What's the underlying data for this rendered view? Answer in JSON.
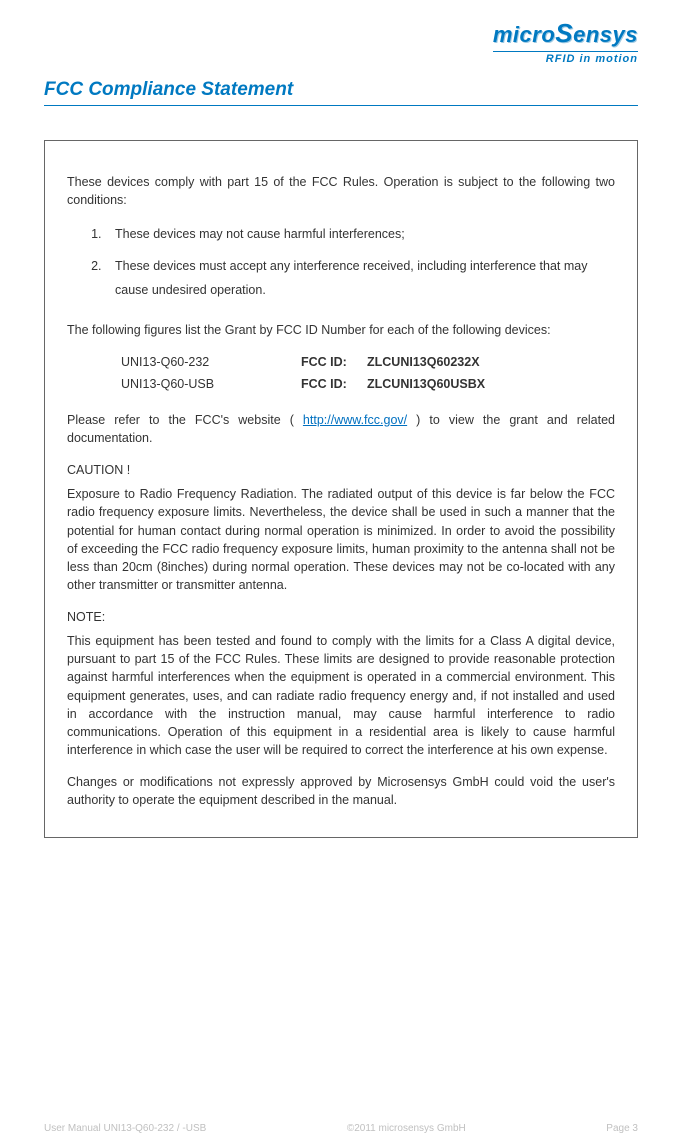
{
  "logo": {
    "main": "microSensys",
    "sub": "RFID in motion"
  },
  "section_title": "FCC Compliance Statement",
  "intro": "These devices comply with part 15 of the FCC Rules. Operation is subject to the following two conditions:",
  "conditions": [
    "These devices may not cause harmful interferences;",
    "These devices must accept any interference received, including interference that may cause undesired operation."
  ],
  "figures_intro": "The following figures list the Grant by FCC ID Number for each of the following devices:",
  "fcc_rows": [
    {
      "model": "UNI13-Q60-232",
      "label": "FCC ID:",
      "id": "ZLCUNI13Q60232X"
    },
    {
      "model": "UNI13-Q60-USB",
      "label": "FCC ID:",
      "id": "ZLCUNI13Q60USBX"
    }
  ],
  "refer_pre": "Please refer to the FCC's website ( ",
  "refer_link": "http://www.fcc.gov/",
  "refer_post": " ) to view the grant and related documentation.",
  "caution_title": "CAUTION !",
  "caution_body": "Exposure to Radio Frequency Radiation. The radiated output of this device is far below the FCC radio frequency exposure limits. Nevertheless, the device shall be used in such a manner that the potential for human contact during normal operation is minimized. In order to avoid the possibility of exceeding the FCC radio frequency exposure limits, human proximity to the antenna shall not be less than 20cm (8inches) during normal operation. These devices may not be co-located with any other transmitter or transmitter antenna.",
  "note_title": "NOTE:",
  "note_body": "This equipment has been tested and found to comply with the limits for a Class A digital device, pursuant to part 15 of the FCC Rules. These limits are designed to provide reasonable protection against harmful interferences when the equipment is operated in a commercial environment. This equipment generates, uses, and can radiate radio frequency energy and, if not installed and used in accordance with the instruction manual, may cause harmful interference to radio communications. Operation of this equipment in a residential area is likely to cause harmful interference in which case the user will be required to correct the interference at his own expense.",
  "changes": "Changes or modifications not expressly approved by Microsensys GmbH could void the user's authority to operate the equipment described in the manual.",
  "footer": {
    "left": "User Manual UNI13-Q60-232 / -USB",
    "center": "©2011 microsensys GmbH",
    "right": "Page 3"
  }
}
